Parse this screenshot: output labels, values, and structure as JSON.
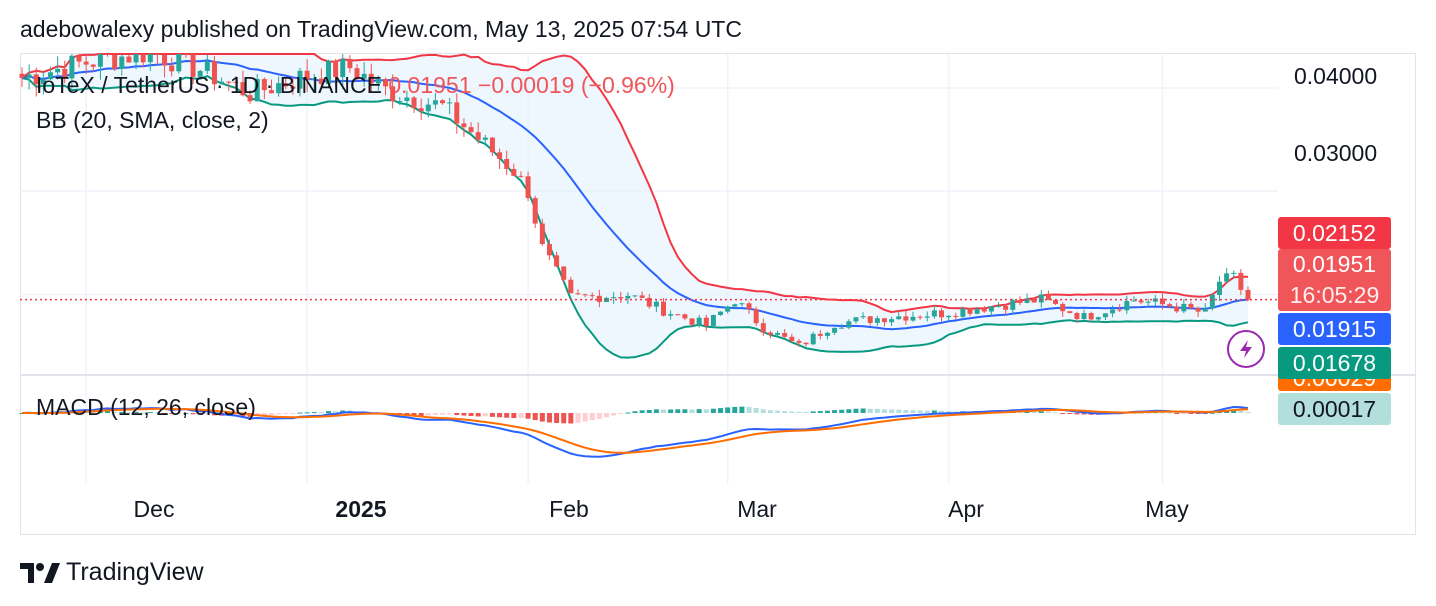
{
  "header": {
    "text": "adebowalexy published on TradingView.com, May 13, 2025 07:54 UTC"
  },
  "legend": {
    "symbol": "IoTeX / TetherUS · 1D · BINANCE",
    "price": "0.01951",
    "change": "−0.00019 (−0.96%)",
    "bb": "BB (20, SMA, close, 2)",
    "macd": "MACD (12, 26, close)"
  },
  "price_axis": [
    "0.04000",
    "0.03000"
  ],
  "price_labels": {
    "bb_upper": "0.02152",
    "last": "0.01951",
    "countdown": "16:05:29",
    "bb_basis": "0.01915",
    "bb_lower": "0.01678",
    "macd_hidden": "0.00029",
    "macd_hist": "0.00017"
  },
  "date_labels": [
    "Dec",
    "2025",
    "Feb",
    "Mar",
    "Apr",
    "May"
  ],
  "brand": {
    "name": "TradingView"
  },
  "colors": {
    "up": "#26a69a",
    "down": "#ef5350",
    "bb_upper": "#f23645",
    "bb_basis": "#2962ff",
    "bb_lower": "#089981",
    "bb_fill": "#e3f2fd",
    "macd": "#2962ff",
    "signal": "#ff6d00",
    "last_label": "#f0555a",
    "hist_label": "#b2dfdb"
  },
  "chart_data": {
    "type": "candlestick",
    "title": "IoTeX / TetherUS · 1D · BINANCE",
    "timeframe": "1D",
    "x_range": [
      "2024-11-22",
      "2025-05-13"
    ],
    "ylim": [
      0.0125,
      0.0432
    ],
    "last_price": 0.01951,
    "close_path": [
      {
        "date": "2024-11-22",
        "close": 0.041
      },
      {
        "date": "2024-12-01",
        "close": 0.0425
      },
      {
        "date": "2024-12-10",
        "close": 0.0435
      },
      {
        "date": "2024-12-17",
        "close": 0.0418
      },
      {
        "date": "2024-12-24",
        "close": 0.0395
      },
      {
        "date": "2024-12-31",
        "close": 0.041
      },
      {
        "date": "2025-01-07",
        "close": 0.042
      },
      {
        "date": "2025-01-12",
        "close": 0.0398
      },
      {
        "date": "2025-01-20",
        "close": 0.0382
      },
      {
        "date": "2025-01-26",
        "close": 0.0345
      },
      {
        "date": "2025-01-30",
        "close": 0.032
      },
      {
        "date": "2025-02-01",
        "close": 0.03
      },
      {
        "date": "2025-02-03",
        "close": 0.0245
      },
      {
        "date": "2025-02-07",
        "close": 0.0197
      },
      {
        "date": "2025-02-15",
        "close": 0.02
      },
      {
        "date": "2025-02-20",
        "close": 0.0185
      },
      {
        "date": "2025-02-26",
        "close": 0.017
      },
      {
        "date": "2025-03-02",
        "close": 0.0195
      },
      {
        "date": "2025-03-06",
        "close": 0.0168
      },
      {
        "date": "2025-03-11",
        "close": 0.015
      },
      {
        "date": "2025-03-16",
        "close": 0.0172
      },
      {
        "date": "2025-03-23",
        "close": 0.0178
      },
      {
        "date": "2025-03-31",
        "close": 0.0182
      },
      {
        "date": "2025-04-08",
        "close": 0.019
      },
      {
        "date": "2025-04-14",
        "close": 0.0195
      },
      {
        "date": "2025-04-20",
        "close": 0.0178
      },
      {
        "date": "2025-04-27",
        "close": 0.0195
      },
      {
        "date": "2025-05-03",
        "close": 0.0188
      },
      {
        "date": "2025-05-07",
        "close": 0.0182
      },
      {
        "date": "2025-05-09",
        "close": 0.0213
      },
      {
        "date": "2025-05-11",
        "close": 0.0216
      },
      {
        "date": "2025-05-13",
        "close": 0.01951
      }
    ],
    "indicators": {
      "bollinger_bands": {
        "period": 20,
        "stddev": 2,
        "source": "close",
        "upper_last": 0.02152,
        "basis_last": 0.01915,
        "lower_last": 0.01678
      },
      "macd": {
        "fast": 12,
        "slow": 26,
        "source": "close",
        "histogram_last": 0.00017,
        "macd_last": 0.00029
      }
    }
  }
}
